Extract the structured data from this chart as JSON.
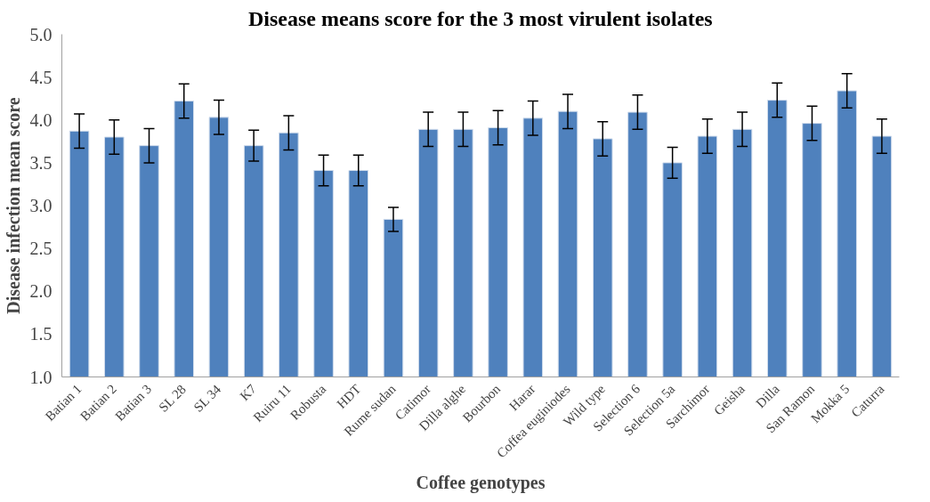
{
  "chart_data": {
    "type": "bar",
    "title": "Disease means score for the 3 most virulent isolates",
    "xlabel": "Coffee genotypes",
    "ylabel": "Disease infection mean score",
    "categories": [
      "Batian 1",
      "Batian 2",
      "Batian 3",
      "SL 28",
      "SL 34",
      "K7",
      "Ruiru 11",
      "Robusta",
      "HDT",
      "Rume sudan",
      "Catimor",
      "Dilla alghe",
      "Bourbon",
      "Harar",
      "Coffea euginiodes",
      "Wild type",
      "Selection 6",
      "Selection 5a",
      "Sarchimor",
      "Geisha",
      "Dilla",
      "San Ramon",
      "Mokka 5",
      "Caturra"
    ],
    "values": [
      3.87,
      3.8,
      3.7,
      4.22,
      4.03,
      3.7,
      3.85,
      3.41,
      3.41,
      2.84,
      3.89,
      3.89,
      3.91,
      4.02,
      4.1,
      3.78,
      4.09,
      3.5,
      3.81,
      3.89,
      4.23,
      3.96,
      4.34,
      3.81
    ],
    "errors": [
      0.2,
      0.2,
      0.2,
      0.2,
      0.2,
      0.18,
      0.2,
      0.18,
      0.18,
      0.14,
      0.2,
      0.2,
      0.2,
      0.2,
      0.2,
      0.2,
      0.2,
      0.18,
      0.2,
      0.2,
      0.2,
      0.2,
      0.2,
      0.2
    ],
    "color": "#4f81bd",
    "ylim": [
      1.0,
      5.0
    ],
    "yticks": [
      {
        "value": 1,
        "label": "1.0"
      },
      {
        "value": 1.5,
        "label": "1.5"
      },
      {
        "value": 2,
        "label": "2.0"
      },
      {
        "value": 2.5,
        "label": "2.5"
      },
      {
        "value": 3,
        "label": "3.0"
      },
      {
        "value": 3.5,
        "label": "3.5"
      },
      {
        "value": 4,
        "label": "4.0"
      },
      {
        "value": 4.5,
        "label": "4.5"
      },
      {
        "value": 5,
        "label": "5.0"
      }
    ],
    "grid": false
  }
}
